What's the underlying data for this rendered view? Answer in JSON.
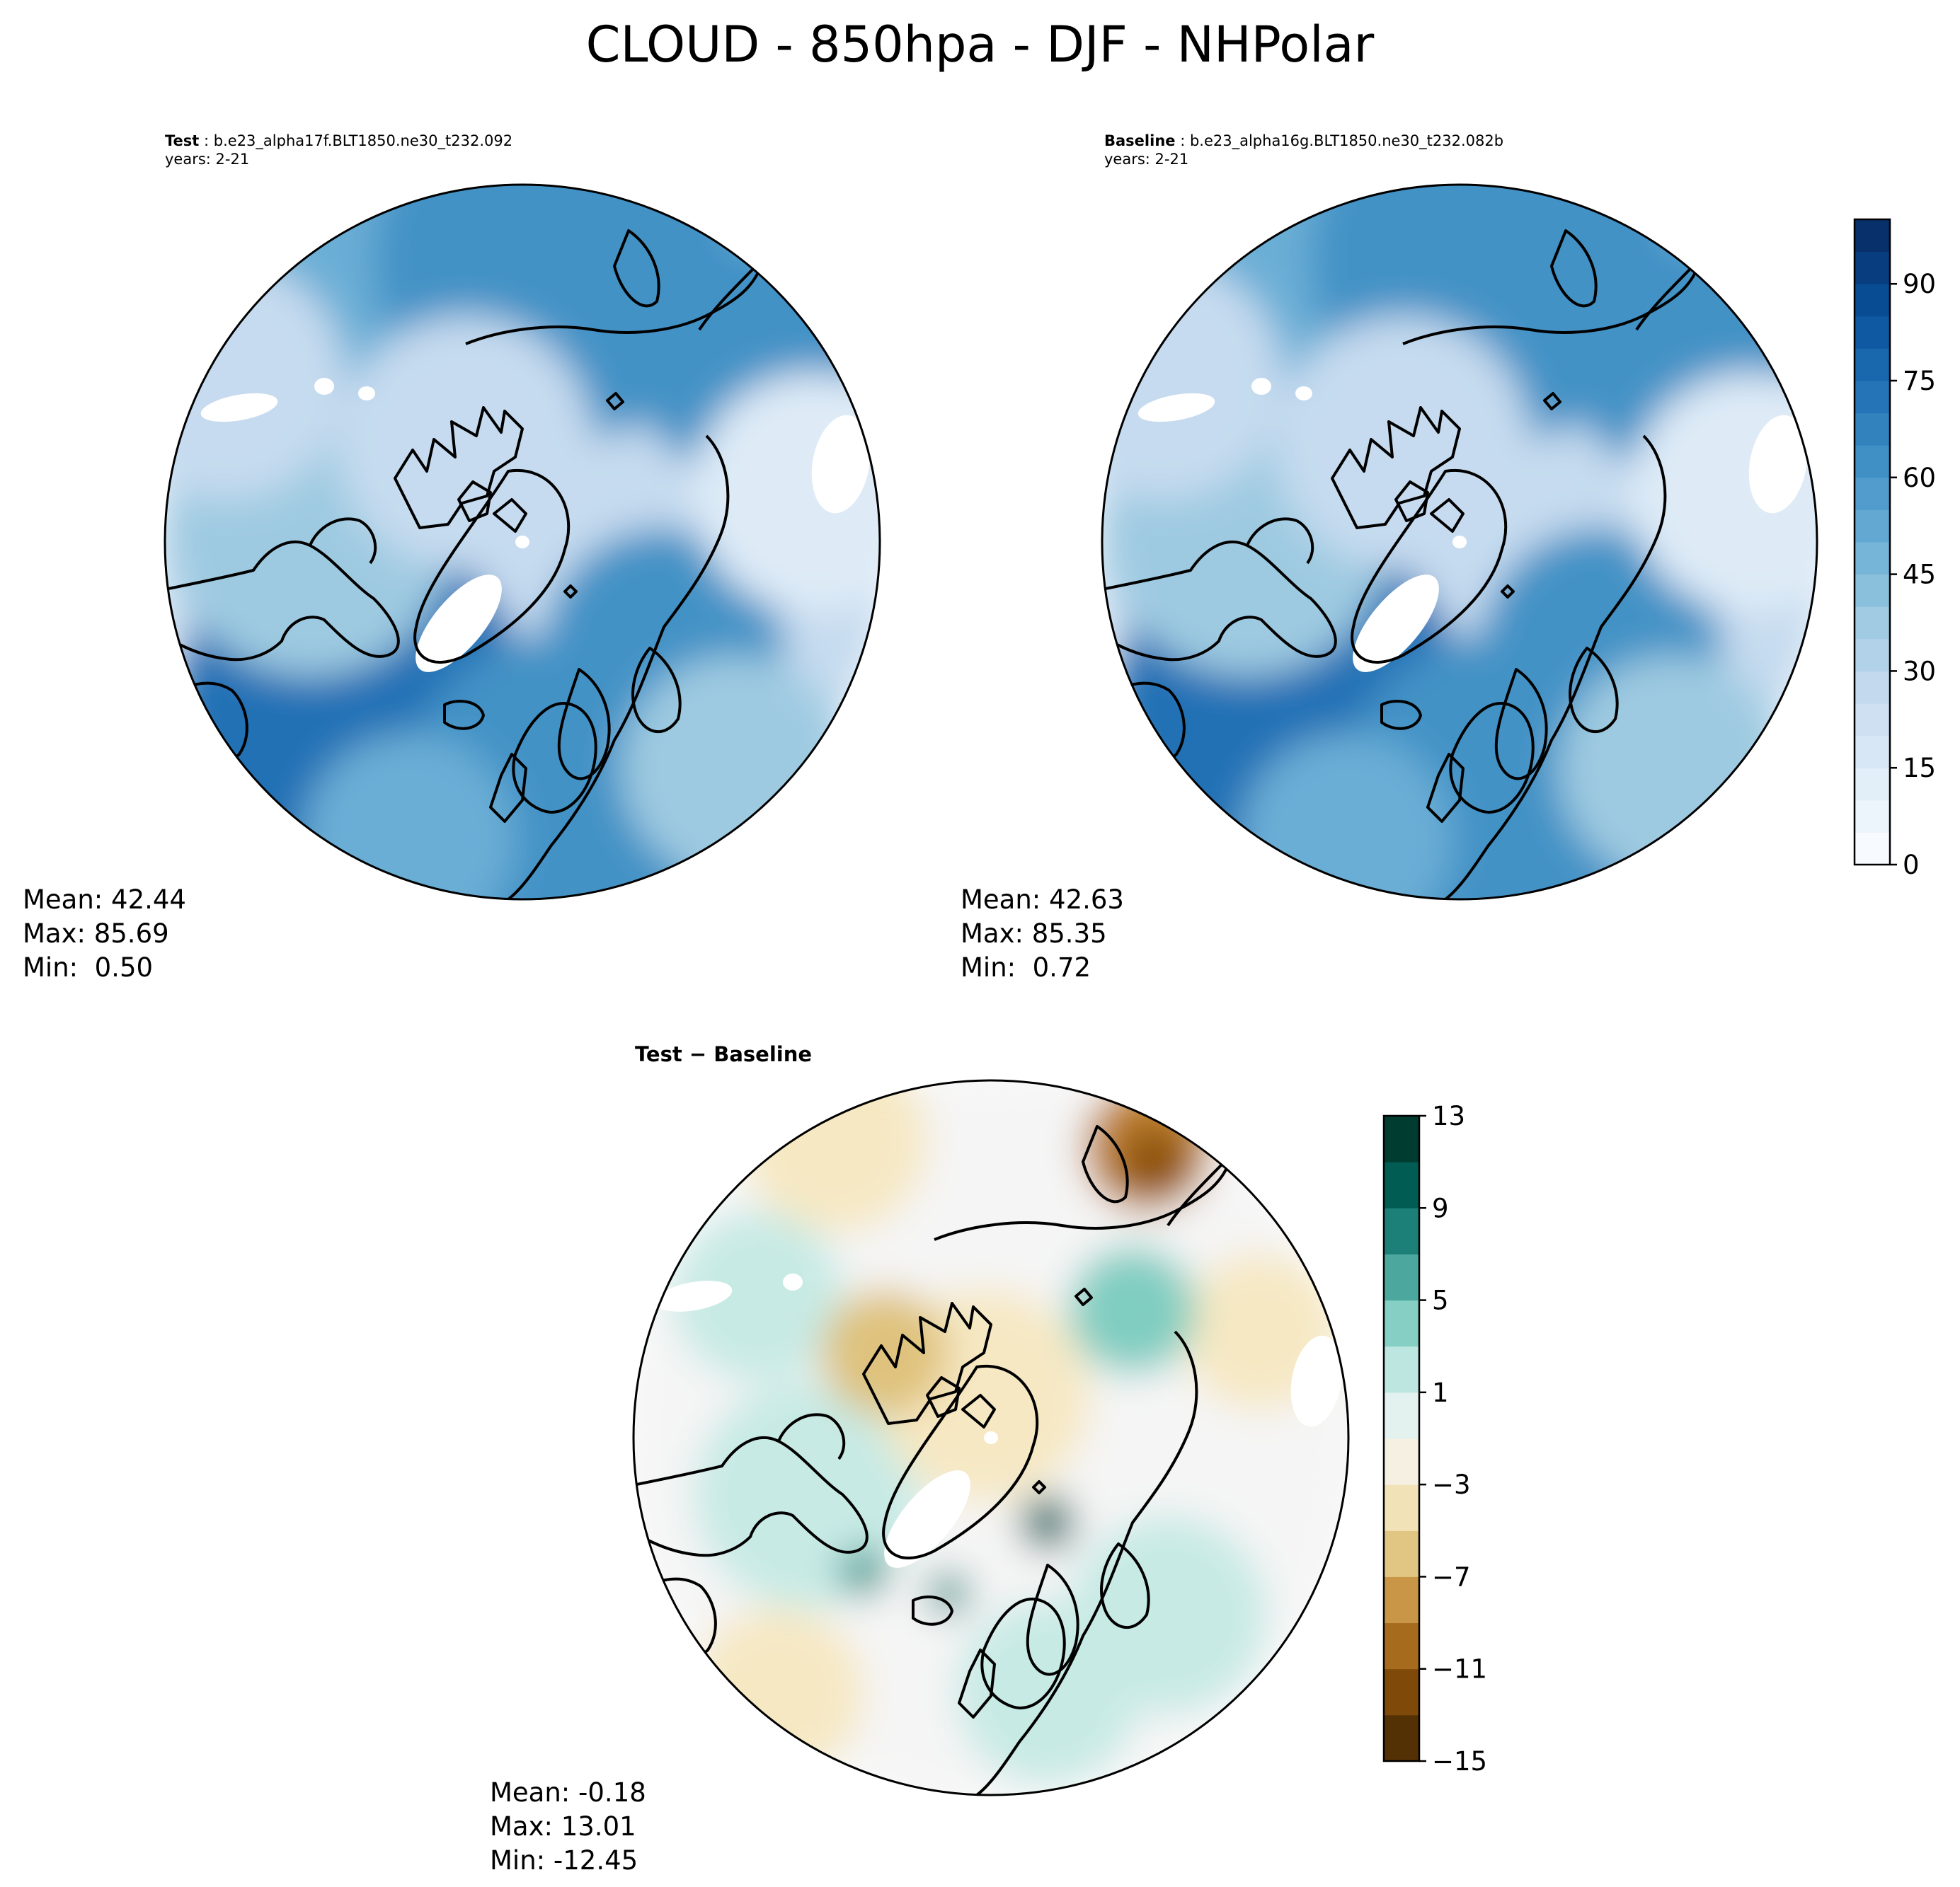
{
  "figure_title": "CLOUD - 850hpa - DJF - NHPolar",
  "chart_data": [
    {
      "type": "heatmap",
      "projection": "north-polar-stereographic",
      "panel_label": "Test",
      "case_name": "b.e23_alpha17f.BLT1850.ne30_t232.092",
      "years": "years: 2-21",
      "stats": {
        "mean": "Mean: 42.44",
        "max": "Max: 85.69",
        "min": "Min:  0.50"
      },
      "colormap": "Blues",
      "colorbar": {
        "range": [
          0,
          100
        ],
        "ticks": [
          "0",
          "15",
          "30",
          "45",
          "60",
          "75",
          "90"
        ]
      }
    },
    {
      "type": "heatmap",
      "projection": "north-polar-stereographic",
      "panel_label": "Baseline",
      "case_name": "b.e23_alpha16g.BLT1850.ne30_t232.082b",
      "years": "years: 2-21",
      "stats": {
        "mean": "Mean: 42.63",
        "max": "Max: 85.35",
        "min": "Min:  0.72"
      },
      "colormap": "Blues",
      "colorbar": {
        "range": [
          0,
          100
        ],
        "ticks": [
          "0",
          "15",
          "30",
          "45",
          "60",
          "75",
          "90"
        ]
      }
    },
    {
      "type": "heatmap",
      "projection": "north-polar-stereographic",
      "panel_label": "Test − Baseline",
      "stats": {
        "mean": "Mean: -0.18",
        "max": "Max: 13.01",
        "min": "Min: -12.45"
      },
      "colormap": "BrBG",
      "colorbar": {
        "range": [
          -15,
          13
        ],
        "ticks": [
          "−15",
          "−11",
          "−7",
          "−3",
          "1",
          "5",
          "9",
          "13"
        ]
      }
    }
  ],
  "colors": {
    "blues": [
      "#f7fbff",
      "#deebf7",
      "#c6dbef",
      "#9ecae1",
      "#6baed6",
      "#4292c6",
      "#2171b5",
      "#08519c",
      "#08306b"
    ],
    "brbg": [
      "#543005",
      "#8c510a",
      "#bf812d",
      "#dfc27d",
      "#f6e8c3",
      "#f5f5f5",
      "#c7eae5",
      "#80cdc1",
      "#35978f",
      "#01665e",
      "#003c30"
    ]
  }
}
